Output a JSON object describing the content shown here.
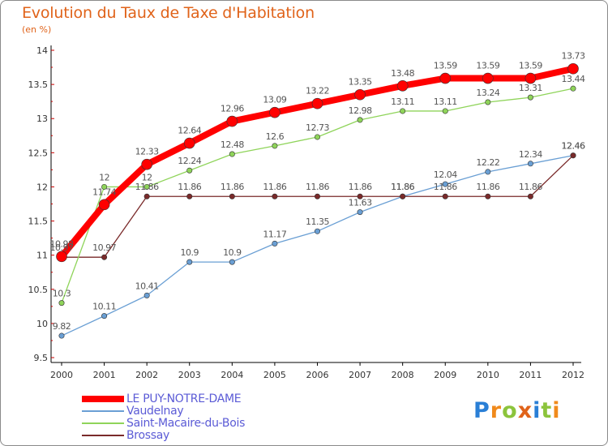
{
  "chart_data": {
    "type": "line",
    "title": "Evolution du Taux de Taxe d'Habitation",
    "subtitle": "(en %)",
    "x": [
      "2000",
      "2001",
      "2002",
      "2003",
      "2004",
      "2005",
      "2006",
      "2007",
      "2008",
      "2009",
      "2010",
      "2011",
      "2012"
    ],
    "ylim": [
      9.5,
      14
    ],
    "yticks": [
      "9.5",
      "10",
      "10.5",
      "11",
      "11.5",
      "12",
      "12.5",
      "13",
      "13.5",
      "14"
    ],
    "grid": false,
    "legend_position": "bottom-left",
    "series": [
      {
        "name": "Vaudelnay",
        "color": "#6a9fd4",
        "values": [
          9.82,
          10.11,
          10.41,
          10.9,
          10.9,
          11.17,
          11.35,
          11.63,
          11.86,
          12.04,
          12.22,
          12.34,
          12.46
        ],
        "labels": [
          "9.82",
          "10.11",
          "10.41",
          "10.9",
          "10.9",
          "11.17",
          "11.35",
          "11.63",
          "11.86",
          "12.04",
          "12.22",
          "12.34",
          "12.46"
        ]
      },
      {
        "name": "Brossay",
        "color": "#7a2a2a",
        "values": [
          10.97,
          10.97,
          11.86,
          11.86,
          11.86,
          11.86,
          11.86,
          11.86,
          11.86,
          11.86,
          11.86,
          11.86,
          12.46
        ],
        "labels": [
          "10.97",
          "10.97",
          "11.86",
          "11.86",
          "11.86",
          "11.86",
          "11.86",
          "11.86",
          "11.86",
          "11.86",
          "11.86",
          "11.86",
          "12.46"
        ]
      },
      {
        "name": "Saint-Macaire-du-Bois",
        "color": "#8fd45a",
        "values": [
          10.3,
          12,
          12,
          12.24,
          12.48,
          12.6,
          12.73,
          12.98,
          13.11,
          13.11,
          13.24,
          13.31,
          13.44
        ],
        "labels": [
          "10.3",
          "12",
          "12",
          "12.24",
          "12.48",
          "12.6",
          "12.73",
          "12.98",
          "13.11",
          "13.11",
          "13.24",
          "13.31",
          "13.44"
        ]
      },
      {
        "name": "LE PUY-NOTRE-DAME",
        "color": "#ff0000",
        "values": [
          10.98,
          11.74,
          12.33,
          12.64,
          12.96,
          13.09,
          13.22,
          13.35,
          13.48,
          13.59,
          13.59,
          13.59,
          13.73
        ],
        "labels": [
          "10.98",
          "11.74",
          "12.33",
          "12.64",
          "12.96",
          "13.09",
          "13.22",
          "13.35",
          "13.48",
          "13.59",
          "13.59",
          "13.59",
          "13.73"
        ]
      }
    ],
    "legend": [
      "LE PUY-NOTRE-DAME",
      "Vaudelnay",
      "Saint-Macaire-du-Bois",
      "Brossay"
    ]
  },
  "brand": {
    "letters": [
      "P",
      "r",
      "o",
      "x",
      "i",
      "t",
      "i"
    ],
    "colors": [
      "#2a7fd6",
      "#f08a1c",
      "#8cc43c",
      "#e0631a",
      "#2a7fd6",
      "#8cc43c",
      "#f08a1c"
    ]
  }
}
